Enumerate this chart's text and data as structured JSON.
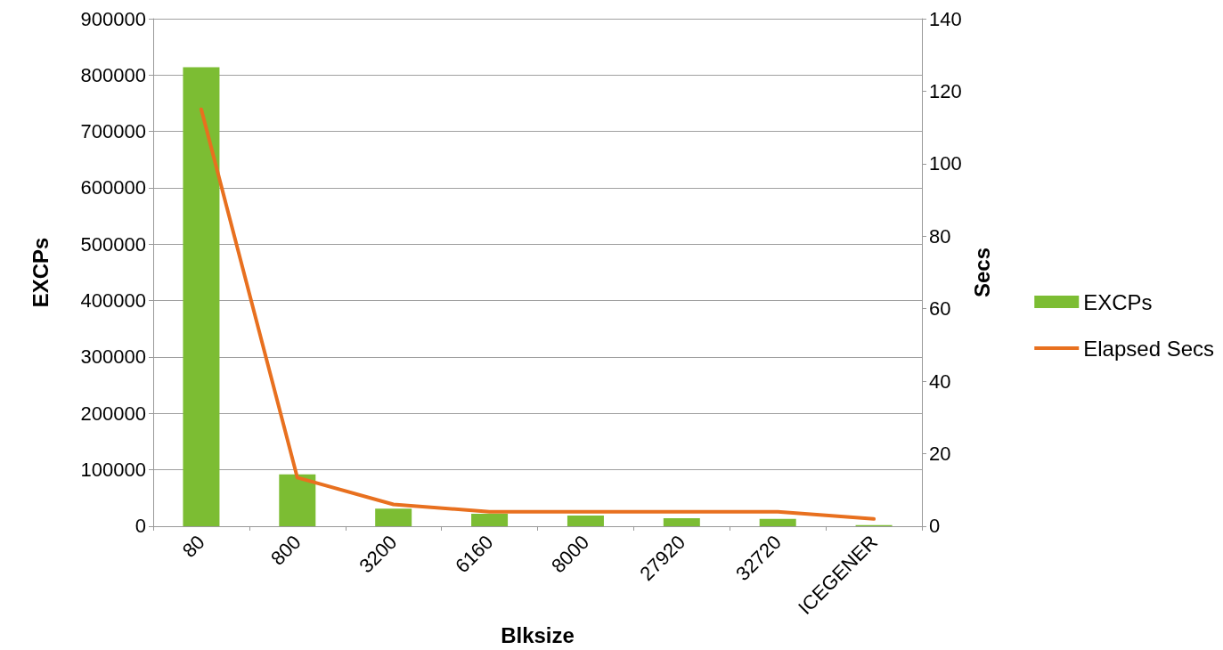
{
  "chart_data": {
    "type": "bar",
    "xlabel": "Blksize",
    "ylabel": "EXCPs",
    "y2label": "Secs",
    "categories": [
      "80",
      "800",
      "3200",
      "6160",
      "8000",
      "27920",
      "32720",
      "ICEGENER"
    ],
    "series": [
      {
        "name": "EXCPs",
        "color": "#7cbd33",
        "values": [
          814000,
          92000,
          31000,
          22000,
          19000,
          14000,
          13000,
          2000
        ]
      },
      {
        "name": "Elapsed Secs",
        "type": "line",
        "axis": "y2",
        "color": "#e8701f",
        "values": [
          115,
          13.4,
          6,
          4,
          4,
          4,
          4,
          2
        ]
      }
    ],
    "ylim": [
      0,
      900000
    ],
    "yticks": [
      0,
      100000,
      200000,
      300000,
      400000,
      500000,
      600000,
      700000,
      800000,
      900000
    ],
    "y2lim": [
      0,
      140
    ],
    "y2ticks": [
      0,
      20,
      40,
      60,
      80,
      100,
      120,
      140
    ],
    "grid": "y",
    "legend": "right",
    "marker": "none"
  }
}
